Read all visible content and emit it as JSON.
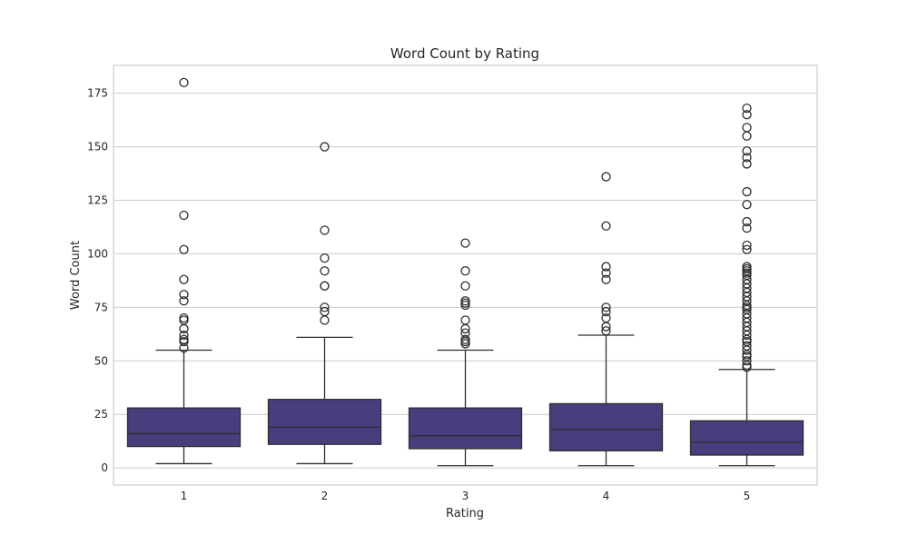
{
  "chart_data": {
    "type": "box",
    "title": "Word Count by Rating",
    "xlabel": "Rating",
    "ylabel": "Word Count",
    "ylim": [
      -8,
      188
    ],
    "yticks": [
      0,
      25,
      50,
      75,
      100,
      125,
      150,
      175
    ],
    "grid": true,
    "box_color": "#483d7d",
    "categories": [
      "1",
      "2",
      "3",
      "4",
      "5"
    ],
    "boxes": [
      {
        "category": "1",
        "whisker_low": 2,
        "q1": 10,
        "median": 16,
        "q3": 28,
        "whisker_high": 55,
        "outliers": [
          56,
          59,
          60,
          62,
          65,
          69,
          70,
          78,
          81,
          88,
          102,
          118,
          180
        ]
      },
      {
        "category": "2",
        "whisker_low": 2,
        "q1": 11,
        "median": 19,
        "q3": 32,
        "whisker_high": 61,
        "outliers": [
          69,
          73,
          75,
          85,
          85,
          92,
          98,
          111,
          150
        ]
      },
      {
        "category": "3",
        "whisker_low": 1,
        "q1": 9,
        "median": 15,
        "q3": 28,
        "whisker_high": 55,
        "outliers": [
          58,
          59,
          60,
          63,
          65,
          69,
          76,
          77,
          78,
          85,
          92,
          105
        ]
      },
      {
        "category": "4",
        "whisker_low": 1,
        "q1": 8,
        "median": 18,
        "q3": 30,
        "whisker_high": 62,
        "outliers": [
          64,
          66,
          70,
          73,
          75,
          88,
          91,
          94,
          113,
          136
        ]
      },
      {
        "category": "5",
        "whisker_low": 1,
        "q1": 6,
        "median": 12,
        "q3": 22,
        "whisker_high": 46,
        "outliers": [
          47,
          48,
          50,
          52,
          53,
          55,
          57,
          59,
          60,
          62,
          64,
          66,
          68,
          70,
          72,
          74,
          75,
          76,
          78,
          80,
          82,
          84,
          86,
          88,
          90,
          91,
          92,
          93,
          94,
          102,
          104,
          112,
          115,
          123,
          129,
          142,
          145,
          148,
          155,
          159,
          165,
          168
        ]
      }
    ]
  }
}
